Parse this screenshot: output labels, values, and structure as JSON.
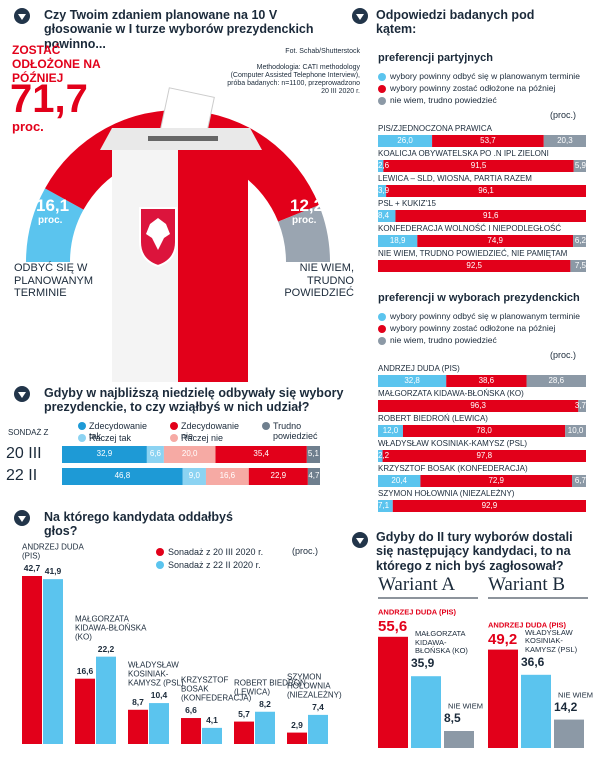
{
  "chart_data": [
    {
      "type": "gauge",
      "title": "Czy Twoim zdaniem planowane na 10 V głosowanie w I turze wyborów prezydenckich powinno...",
      "categories": [
        "ODBYĆ SIĘ W PLANOWANYM TERMINIE",
        "ZOSTAĆ ODŁOŻONE NA PÓŹNIEJ",
        "NIE WIEM, TRUDNO POWIEDZIEĆ"
      ],
      "values": [
        16.1,
        71.7,
        12.2
      ],
      "value_labels": [
        "16,1",
        "71,7",
        "12,2"
      ],
      "colors": [
        "#5bc4ee",
        "#e2001a",
        "#9aa5b1"
      ],
      "unit": "proc.",
      "annotations": [
        "Fot. Schab/Shutterstock",
        "Methodologia: CATI methodology (Computer Assisted Telephone Interview), próba badanych: n=1100, przeprowadzono 20 III 2020 r."
      ]
    },
    {
      "type": "stacked_barh",
      "title": "Gdyby w najbliższą niedzielę odbywały się wybory prezydenckie, to czy wziąłbyś w nich udział?",
      "axis_label": "SONDAŻ Z",
      "categories": [
        "20 III",
        "22 II"
      ],
      "series": [
        {
          "name": "Zdecydowanie tak",
          "color": "#1e9ad6",
          "values": [
            32.9,
            46.8
          ],
          "value_labels": [
            "32,9",
            "46,8"
          ]
        },
        {
          "name": "Raczej tak",
          "color": "#8cd3f2",
          "values": [
            6.6,
            9.0
          ],
          "value_labels": [
            "6,6",
            "9,0"
          ]
        },
        {
          "name": "Raczej nie",
          "color": "#f6aaa4",
          "values": [
            20.0,
            16.6
          ],
          "value_labels": [
            "20,0",
            "16,6"
          ]
        },
        {
          "name": "Zdecydowanie nie",
          "color": "#e2001a",
          "values": [
            35.4,
            22.9
          ],
          "value_labels": [
            "35,4",
            "22,9"
          ]
        },
        {
          "name": "Trudno powiedzieć",
          "color": "#6f7f8e",
          "values": [
            5.1,
            4.7
          ],
          "value_labels": [
            "5,1",
            "4,7"
          ]
        }
      ]
    },
    {
      "type": "bar",
      "title": "Na którego kandydata oddałbyś głos?",
      "unit": "(proc.)",
      "categories": [
        "ANDRZEJ DUDA (PIS)",
        "MAŁGORZATA KIDAWA-BŁOŃSKA (KO)",
        "WŁADYSŁAW KOSINIAK-KAMYSZ (PSL)",
        "KRZYSZTOF BOSAK (KONFEDERACJA)",
        "ROBERT BIEDROŃ (LEWICA)",
        "SZYMON HOŁOWNIA (NIEZALEŻNY)"
      ],
      "series": [
        {
          "name": "Sonadaż z 20 III 2020 r.",
          "color": "#e2001a",
          "values": [
            42.7,
            16.6,
            8.7,
            6.6,
            5.7,
            2.9
          ],
          "value_labels": [
            "42,7",
            "16,6",
            "8,7",
            "6,6",
            "5,7",
            "2,9"
          ]
        },
        {
          "name": "Sonadaż z 22 II 2020 r.",
          "color": "#5bc4ee",
          "values": [
            41.9,
            22.2,
            10.4,
            4.1,
            8.2,
            7.4
          ],
          "value_labels": [
            "41,9",
            "22,2",
            "10,4",
            "4,1",
            "8,2",
            "7,4"
          ]
        }
      ]
    },
    {
      "type": "stacked_barh100",
      "title": "Odpowiedzi badanych pod kątem:",
      "subtitle": "preferencji partyjnych",
      "unit": "(proc.)",
      "categories": [
        "PIS/ZJEDNOCZONA PRAWICA",
        "KOALICJA OBYWATELSKA PO .N IPL ZIELONI",
        "LEWICA – SLD, WIOSNA, PARTIA RAZEM",
        "PSL + KUKIZ'15",
        "KONFEDERACJA WOLNOŚĆ I NIEPODLEGŁOŚĆ",
        "NIE WIEM, TRUDNO POWIEDZIEĆ, NIE PAMIĘTAM"
      ],
      "series": [
        {
          "name": "wybory powinny odbyć się w planowanym terminie",
          "color": "#5bc4ee",
          "values": [
            26.0,
            2.6,
            3.9,
            8.4,
            18.9,
            null
          ],
          "value_labels": [
            "26,0",
            "2,6",
            "3,9",
            "8,4",
            "18,9",
            null
          ]
        },
        {
          "name": "wybory powinny zostać odłożone na później",
          "color": "#e2001a",
          "values": [
            53.7,
            91.5,
            96.1,
            91.6,
            74.9,
            92.5
          ],
          "value_labels": [
            "53,7",
            "91,5",
            "96,1",
            "91,6",
            "74,9",
            "92,5"
          ]
        },
        {
          "name": "nie wiem, trudno powiedzieć",
          "color": "#8c99a6",
          "values": [
            20.3,
            5.9,
            null,
            null,
            6.2,
            7.5
          ],
          "value_labels": [
            "20,3",
            "5,9",
            null,
            null,
            "6,2",
            "7,5"
          ]
        }
      ]
    },
    {
      "type": "stacked_barh100",
      "subtitle": "preferencji w wyborach prezydenckich",
      "unit": "(proc.)",
      "categories": [
        "ANDRZEJ DUDA (PIS)",
        "MAŁGORZATA KIDAWA-BŁOŃSKA (KO)",
        "ROBERT BIEDROŃ (LEWICA)",
        "WŁADYSŁAW KOSINIAK-KAMYSZ (PSL)",
        "KRZYSZTOF BOSAK (KONFEDERACJA)",
        "SZYMON HOŁOWNIA (NIEZALEŻNY)"
      ],
      "series": [
        {
          "name": "wybory powinny odbyć się w planowanym terminie",
          "color": "#5bc4ee",
          "values": [
            32.8,
            null,
            12.0,
            2.2,
            20.4,
            7.1
          ],
          "value_labels": [
            "32,8",
            null,
            "12,0",
            "2,2",
            "20,4",
            "7,1"
          ]
        },
        {
          "name": "wybory powinny zostać odłożone na później",
          "color": "#e2001a",
          "values": [
            38.6,
            96.3,
            78.0,
            97.8,
            72.9,
            92.9
          ],
          "value_labels": [
            "38,6",
            "96,3",
            "78,0",
            "97,8",
            "72,9",
            "92,9"
          ]
        },
        {
          "name": "nie wiem, trudno powiedzieć",
          "color": "#8c99a6",
          "values": [
            28.6,
            3.7,
            10.0,
            null,
            6.7,
            null
          ],
          "value_labels": [
            "28,6",
            "3,7",
            "10,0",
            null,
            "6,7",
            null
          ]
        }
      ]
    },
    {
      "type": "bar_single",
      "title": "Gdyby do II tury wyborów dostali się następujący kandydaci, to na którego z nich byś zagłosował?",
      "subtitle": "Wariant A",
      "categories": [
        "ANDRZEJ DUDA (PIS)",
        "MAŁGORZATA KIDAWA-BŁOŃSKA (KO)",
        "NIE WIEM"
      ],
      "values": [
        55.6,
        35.9,
        8.5
      ],
      "value_labels": [
        "55,6",
        "35,9",
        "8,5"
      ],
      "colors": [
        "#e2001a",
        "#5bc4ee",
        "#8c99a6"
      ]
    },
    {
      "type": "bar_single",
      "subtitle": "Wariant B",
      "categories": [
        "ANDRZEJ DUDA (PIS)",
        "WŁADYSŁAW KOSINIAK-KAMYSZ (PSL)",
        "NIE WIEM"
      ],
      "values": [
        49.2,
        36.6,
        14.2
      ],
      "value_labels": [
        "49,2",
        "36,6",
        "14,2"
      ],
      "colors": [
        "#e2001a",
        "#5bc4ee",
        "#8c99a6"
      ]
    }
  ]
}
